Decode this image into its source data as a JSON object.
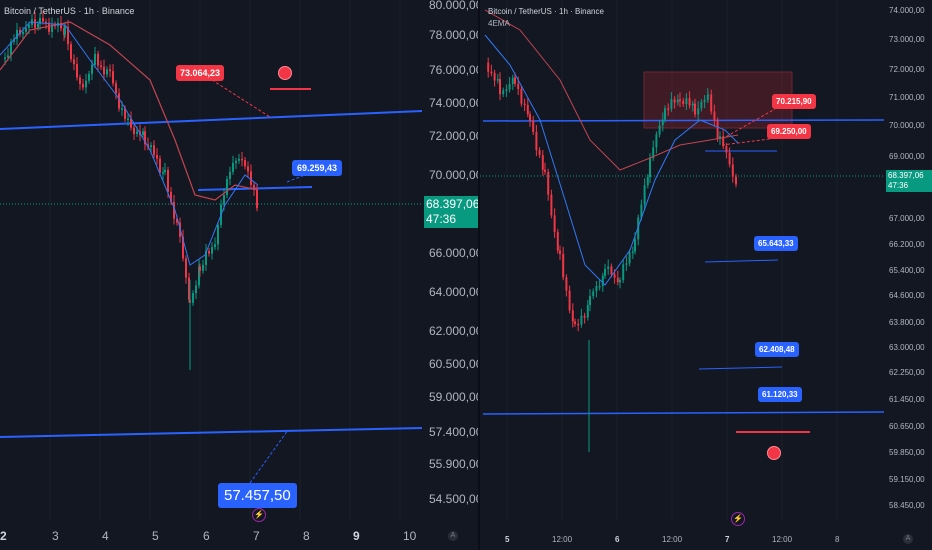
{
  "left_chart": {
    "title": "Bitcoin / TetherUS · 1h · Binance",
    "y_labels": [
      "80.000,00",
      "78.000,00",
      "76.000,00",
      "74.000,00",
      "72.000,00",
      "70.000,00",
      "66.000,00",
      "64.000,00",
      "62.000,00",
      "60.500,00",
      "59.000,00",
      "57.400,00",
      "55.900,00",
      "54.500,00"
    ],
    "x_labels": [
      "2",
      "3",
      "4",
      "5",
      "6",
      "7",
      "8",
      "9",
      "10"
    ],
    "current_price": "68.397,06",
    "countdown": "47:36",
    "labels": {
      "target_red": "73.064,23",
      "level_blue": "69.259,43",
      "big_target": "57.457,50"
    },
    "colors": {
      "up": "#089981",
      "down": "#f23645",
      "trend": "#2962ff",
      "ema_slow": "#c2454f",
      "ema_fast": "#3179f5"
    }
  },
  "right_chart": {
    "title": "Bitcoin / TetherUS · 1h · Binance",
    "indicator": "4EMA",
    "y_labels": [
      "74.000,00",
      "73.000,00",
      "72.000,00",
      "71.000,00",
      "70.000,00",
      "69.000,00",
      "67.000,00",
      "66.200,00",
      "65.400,00",
      "64.600,00",
      "63.800,00",
      "63.000,00",
      "62.250,00",
      "61.450,00",
      "60.650,00",
      "59.850,00",
      "59.150,00",
      "58.450,00"
    ],
    "x_labels": [
      "5",
      "12:00",
      "6",
      "12:00",
      "7",
      "12:00",
      "8"
    ],
    "current_price": "68.397,06",
    "countdown": "47:36",
    "labels": {
      "r1": "70.215,90",
      "r2": "69.250,00",
      "s1": "65.643,33",
      "s2": "62.408,48",
      "s3": "61.120,33"
    }
  }
}
